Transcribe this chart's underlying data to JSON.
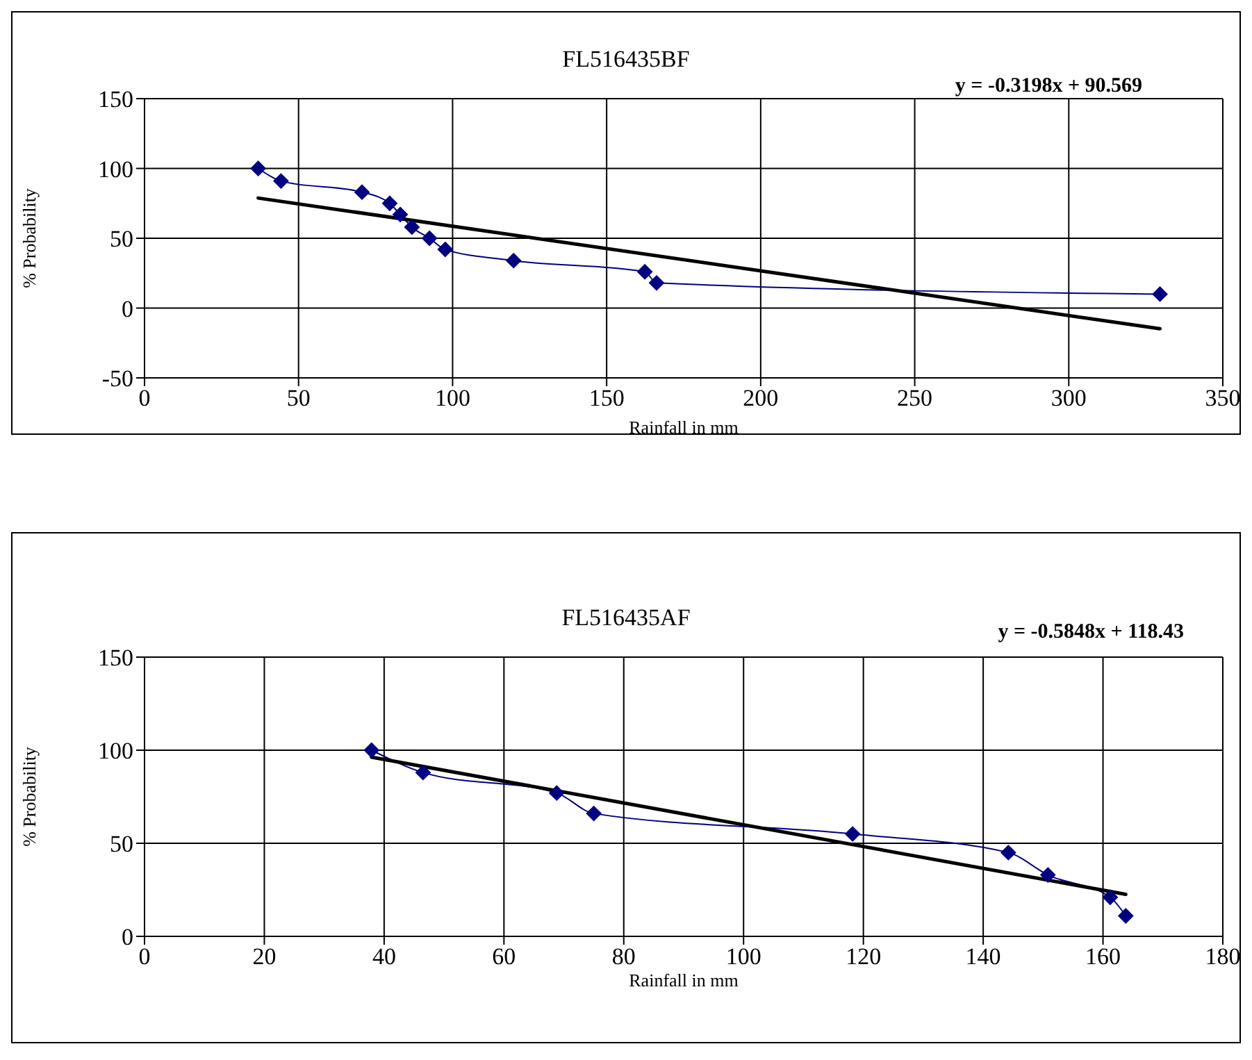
{
  "chart_data": [
    {
      "type": "line",
      "title": "FL516435BF",
      "xlabel": "Rainfall in mm",
      "ylabel": "% Probability",
      "xlim": [
        0,
        350
      ],
      "xticks": [
        0,
        50,
        100,
        150,
        200,
        250,
        300,
        350
      ],
      "ylim": [
        -50,
        150
      ],
      "yticks": [
        -50,
        0,
        50,
        100,
        150
      ],
      "grid": true,
      "annotations": [
        "y = -0.3198x + 90.569"
      ],
      "series": [
        {
          "color": "#000080",
          "marker": "diamond",
          "x": [
            36.9,
            44.3,
            70.6,
            79.6,
            83,
            86.8,
            92.5,
            97.6,
            119.8,
            162.4,
            166.2,
            329.6
          ],
          "values": [
            100,
            91,
            83,
            75,
            67,
            58,
            50,
            42,
            34,
            26,
            18,
            10
          ]
        },
        {
          "color": "#000000",
          "marker": "none",
          "x": [
            36.9,
            329.6
          ],
          "values": [
            78.8,
            -14.8
          ]
        }
      ]
    },
    {
      "type": "line",
      "title": "FL516435AF",
      "xlabel": "Rainfall in mm",
      "ylabel": "% Probability",
      "xlim": [
        0,
        180
      ],
      "xticks": [
        0,
        20,
        40,
        60,
        80,
        100,
        120,
        140,
        160,
        180
      ],
      "ylim": [
        0,
        150
      ],
      "yticks": [
        0,
        50,
        100,
        150
      ],
      "grid": true,
      "annotations": [
        "y = -0.5848x + 118.43"
      ],
      "series": [
        {
          "color": "#000080",
          "marker": "diamond",
          "x": [
            37.9,
            46.5,
            68.8,
            75,
            118.2,
            144.2,
            150.8,
            161.2,
            163.8
          ],
          "values": [
            100,
            88,
            77,
            66,
            55,
            45,
            33,
            21,
            11
          ]
        },
        {
          "color": "#000000",
          "marker": "none",
          "x": [
            37.9,
            163.8
          ],
          "values": [
            96.3,
            22.6
          ]
        }
      ]
    }
  ]
}
